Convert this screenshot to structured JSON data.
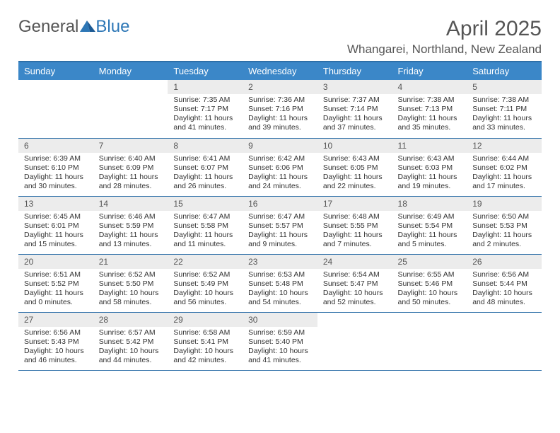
{
  "logo": {
    "text1": "General",
    "text2": "Blue"
  },
  "title": "April 2025",
  "location": "Whangarei, Northland, New Zealand",
  "colors": {
    "header_bg": "#3b87c8",
    "header_text": "#ffffff",
    "daynum_bg": "#ececec",
    "rule": "#2d6fa8",
    "logo_blue": "#2d77b6",
    "text": "#333333"
  },
  "day_headers": [
    "Sunday",
    "Monday",
    "Tuesday",
    "Wednesday",
    "Thursday",
    "Friday",
    "Saturday"
  ],
  "weeks": [
    [
      null,
      null,
      {
        "n": "1",
        "sunrise": "7:35 AM",
        "sunset": "7:17 PM",
        "daylight": "11 hours and 41 minutes."
      },
      {
        "n": "2",
        "sunrise": "7:36 AM",
        "sunset": "7:16 PM",
        "daylight": "11 hours and 39 minutes."
      },
      {
        "n": "3",
        "sunrise": "7:37 AM",
        "sunset": "7:14 PM",
        "daylight": "11 hours and 37 minutes."
      },
      {
        "n": "4",
        "sunrise": "7:38 AM",
        "sunset": "7:13 PM",
        "daylight": "11 hours and 35 minutes."
      },
      {
        "n": "5",
        "sunrise": "7:38 AM",
        "sunset": "7:11 PM",
        "daylight": "11 hours and 33 minutes."
      }
    ],
    [
      {
        "n": "6",
        "sunrise": "6:39 AM",
        "sunset": "6:10 PM",
        "daylight": "11 hours and 30 minutes."
      },
      {
        "n": "7",
        "sunrise": "6:40 AM",
        "sunset": "6:09 PM",
        "daylight": "11 hours and 28 minutes."
      },
      {
        "n": "8",
        "sunrise": "6:41 AM",
        "sunset": "6:07 PM",
        "daylight": "11 hours and 26 minutes."
      },
      {
        "n": "9",
        "sunrise": "6:42 AM",
        "sunset": "6:06 PM",
        "daylight": "11 hours and 24 minutes."
      },
      {
        "n": "10",
        "sunrise": "6:43 AM",
        "sunset": "6:05 PM",
        "daylight": "11 hours and 22 minutes."
      },
      {
        "n": "11",
        "sunrise": "6:43 AM",
        "sunset": "6:03 PM",
        "daylight": "11 hours and 19 minutes."
      },
      {
        "n": "12",
        "sunrise": "6:44 AM",
        "sunset": "6:02 PM",
        "daylight": "11 hours and 17 minutes."
      }
    ],
    [
      {
        "n": "13",
        "sunrise": "6:45 AM",
        "sunset": "6:01 PM",
        "daylight": "11 hours and 15 minutes."
      },
      {
        "n": "14",
        "sunrise": "6:46 AM",
        "sunset": "5:59 PM",
        "daylight": "11 hours and 13 minutes."
      },
      {
        "n": "15",
        "sunrise": "6:47 AM",
        "sunset": "5:58 PM",
        "daylight": "11 hours and 11 minutes."
      },
      {
        "n": "16",
        "sunrise": "6:47 AM",
        "sunset": "5:57 PM",
        "daylight": "11 hours and 9 minutes."
      },
      {
        "n": "17",
        "sunrise": "6:48 AM",
        "sunset": "5:55 PM",
        "daylight": "11 hours and 7 minutes."
      },
      {
        "n": "18",
        "sunrise": "6:49 AM",
        "sunset": "5:54 PM",
        "daylight": "11 hours and 5 minutes."
      },
      {
        "n": "19",
        "sunrise": "6:50 AM",
        "sunset": "5:53 PM",
        "daylight": "11 hours and 2 minutes."
      }
    ],
    [
      {
        "n": "20",
        "sunrise": "6:51 AM",
        "sunset": "5:52 PM",
        "daylight": "11 hours and 0 minutes."
      },
      {
        "n": "21",
        "sunrise": "6:52 AM",
        "sunset": "5:50 PM",
        "daylight": "10 hours and 58 minutes."
      },
      {
        "n": "22",
        "sunrise": "6:52 AM",
        "sunset": "5:49 PM",
        "daylight": "10 hours and 56 minutes."
      },
      {
        "n": "23",
        "sunrise": "6:53 AM",
        "sunset": "5:48 PM",
        "daylight": "10 hours and 54 minutes."
      },
      {
        "n": "24",
        "sunrise": "6:54 AM",
        "sunset": "5:47 PM",
        "daylight": "10 hours and 52 minutes."
      },
      {
        "n": "25",
        "sunrise": "6:55 AM",
        "sunset": "5:46 PM",
        "daylight": "10 hours and 50 minutes."
      },
      {
        "n": "26",
        "sunrise": "6:56 AM",
        "sunset": "5:44 PM",
        "daylight": "10 hours and 48 minutes."
      }
    ],
    [
      {
        "n": "27",
        "sunrise": "6:56 AM",
        "sunset": "5:43 PM",
        "daylight": "10 hours and 46 minutes."
      },
      {
        "n": "28",
        "sunrise": "6:57 AM",
        "sunset": "5:42 PM",
        "daylight": "10 hours and 44 minutes."
      },
      {
        "n": "29",
        "sunrise": "6:58 AM",
        "sunset": "5:41 PM",
        "daylight": "10 hours and 42 minutes."
      },
      {
        "n": "30",
        "sunrise": "6:59 AM",
        "sunset": "5:40 PM",
        "daylight": "10 hours and 41 minutes."
      },
      null,
      null,
      null
    ]
  ],
  "labels": {
    "sunrise": "Sunrise:",
    "sunset": "Sunset:",
    "daylight": "Daylight:"
  }
}
